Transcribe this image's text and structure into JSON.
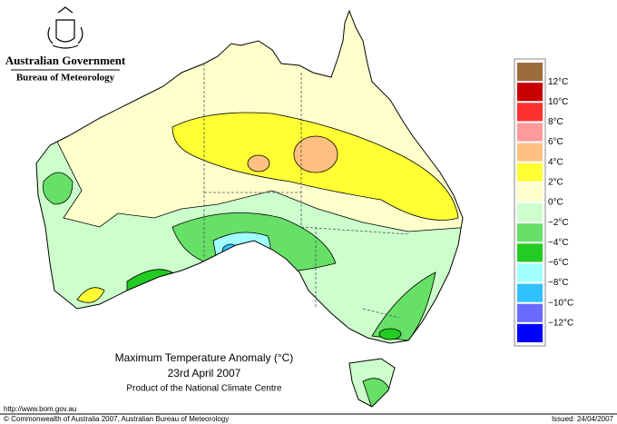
{
  "header": {
    "agency": "Australian Government",
    "bureau": "Bureau of Meteorology"
  },
  "legend": {
    "colors": [
      "#9c6b3c",
      "#c80000",
      "#ff3030",
      "#ff9a9a",
      "#ffc080",
      "#ffff33",
      "#ffffcc",
      "#ccffcc",
      "#66e066",
      "#22cc22",
      "#a0ffff",
      "#30c0ff",
      "#6a6aff",
      "#0000ff"
    ],
    "labels": [
      "12°C",
      "10°C",
      "8°C",
      "6°C",
      "4°C",
      "2°C",
      "0°C",
      "−2°C",
      "−4°C",
      "−6°C",
      "−8°C",
      "−10°C",
      "−12°C"
    ]
  },
  "caption": {
    "title": "Maximum Temperature Anomaly (°C)",
    "date": "23rd April 2007",
    "product": "Product of the National Climate Centre"
  },
  "footer": {
    "url": "http://www.bom.gov.au",
    "copyright": "© Commonwealth of Australia 2007, Australian Bureau of Meteorology",
    "issued": "Issued: 24/04/2007"
  }
}
